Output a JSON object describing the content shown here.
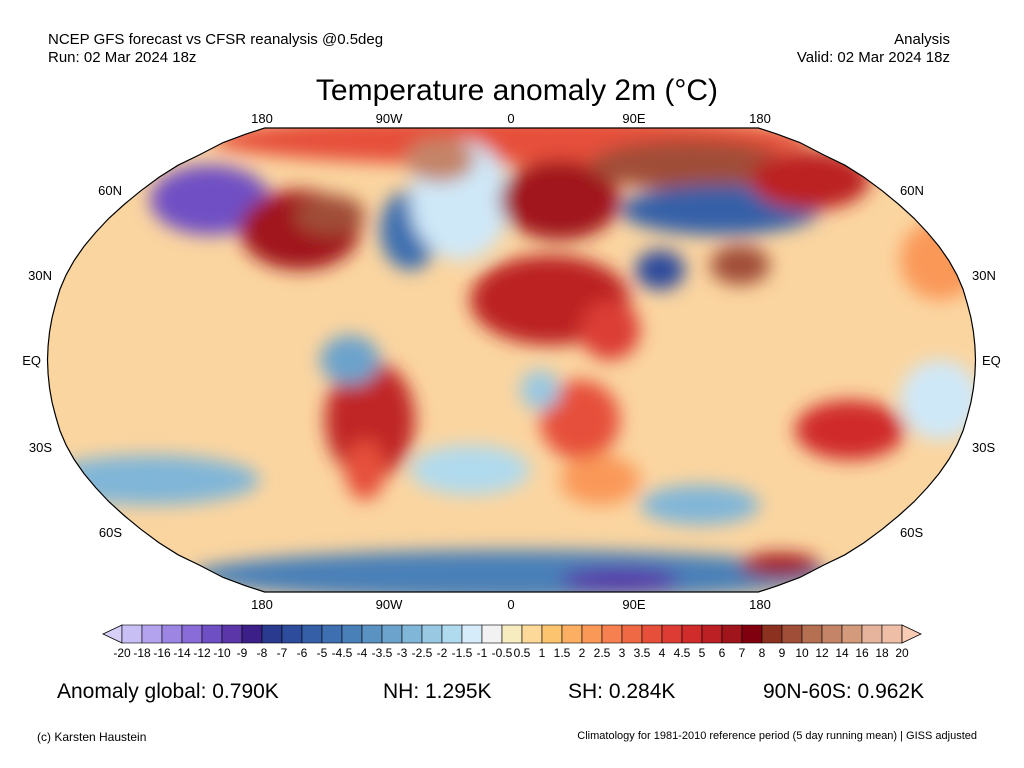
{
  "header": {
    "line1_left": "NCEP GFS forecast vs CFSR reanalysis @0.5deg",
    "line2_left": "Run: 02 Mar 2024 18z",
    "line1_right": "Analysis",
    "line2_right": "Valid: 02 Mar 2024 18z",
    "title": "Temperature anomaly 2m (°C)"
  },
  "map": {
    "lon_labels": [
      "180",
      "90W",
      "0",
      "90E",
      "180"
    ],
    "lat_labels": [
      "60N",
      "30N",
      "EQ",
      "30S",
      "60S"
    ]
  },
  "colorbar": {
    "labels": [
      "-20",
      "-18",
      "-16",
      "-14",
      "-12",
      "-10",
      "-9",
      "-8",
      "-7",
      "-6",
      "-5",
      "-4.5",
      "-4",
      "-3.5",
      "-3",
      "-2.5",
      "-2",
      "-1.5",
      "-1",
      "-0.5",
      "0.5",
      "1",
      "1.5",
      "2",
      "2.5",
      "3",
      "3.5",
      "4",
      "4.5",
      "5",
      "6",
      "7",
      "8",
      "9",
      "10",
      "12",
      "14",
      "16",
      "18",
      "20"
    ],
    "under_color": "#d8d0f8",
    "over_color": "#f9ccb6",
    "colors": [
      "#c8bff5",
      "#b3a3ef",
      "#9d86e3",
      "#8a6cd8",
      "#6f4fc4",
      "#5a36a8",
      "#3c1f88",
      "#2a3a8f",
      "#2e4c9c",
      "#3560a8",
      "#3e6fb0",
      "#4a80b8",
      "#5a92c2",
      "#6ca3cc",
      "#80b6d8",
      "#98c8e2",
      "#b0daee",
      "#d6ecfa",
      "#f2f2f2",
      "#f7ecc0",
      "#fcd998",
      "#fdc470",
      "#fcae62",
      "#fa9858",
      "#f68050",
      "#ef6a44",
      "#e6503a",
      "#dc3c34",
      "#d02c2c",
      "#bc2024",
      "#a0141c",
      "#800010",
      "#8c3020",
      "#a04e38",
      "#b47050",
      "#c48468",
      "#d49a7c",
      "#e6b49c",
      "#eebfa6"
    ]
  },
  "stats": {
    "global": "Anomaly global: 0.790K",
    "nh": "NH: 1.295K",
    "sh": "SH: 0.284K",
    "band": "90N-60S: 0.962K"
  },
  "footer": {
    "credit": "(c) Karsten Haustein",
    "note": "Climatology for 1981-2010 reference period (5 day running mean) | GISS adjusted"
  }
}
